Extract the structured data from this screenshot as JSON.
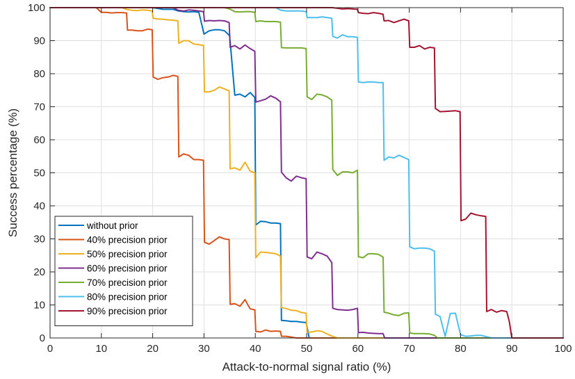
{
  "chart_data": {
    "type": "line",
    "xlabel": "Attack-to-normal signal ratio (%)",
    "ylabel": "Success percentage (%)",
    "xlim": [
      0,
      100
    ],
    "ylim": [
      0,
      100
    ],
    "xticks": [
      0,
      10,
      20,
      30,
      40,
      50,
      60,
      70,
      80,
      90,
      100
    ],
    "yticks": [
      0,
      10,
      20,
      30,
      40,
      50,
      60,
      70,
      80,
      90,
      100
    ],
    "grid": true,
    "legend_position": "bottom-left",
    "series": [
      {
        "name": "without prior",
        "color": "#0072BD",
        "x": [
          0,
          20,
          22,
          24,
          25,
          26,
          27,
          28,
          29,
          30,
          31,
          32,
          33,
          34,
          35,
          36,
          37,
          38,
          39,
          39.9,
          40.1,
          41,
          42,
          43,
          44,
          44.9,
          45.1,
          46,
          47,
          48,
          49,
          49.9,
          50.5,
          100
        ],
        "y": [
          100,
          100,
          99.5,
          99.5,
          99,
          98.8,
          98.7,
          98.8,
          98.6,
          92,
          93,
          93.3,
          93.3,
          93,
          91.5,
          73.5,
          73.8,
          73,
          74.3,
          72.8,
          34.2,
          35.3,
          35.2,
          34.8,
          34.8,
          34.6,
          5.3,
          5.2,
          5,
          5,
          4.8,
          4.7,
          0,
          0
        ]
      },
      {
        "name": "40% precision prior",
        "color": "#D95319",
        "x": [
          0,
          9,
          10,
          11,
          12,
          13,
          14,
          14.9,
          15.1,
          16,
          17,
          18,
          19,
          19.9,
          20.1,
          21,
          22,
          23,
          24,
          24.9,
          25.1,
          26,
          27,
          28,
          29,
          29.9,
          30.1,
          31,
          32,
          33,
          34,
          34.9,
          35.1,
          36,
          37,
          38,
          39,
          39.9,
          40.1,
          41,
          42,
          43,
          44,
          44.9,
          45.1,
          46,
          47,
          48,
          100
        ],
        "y": [
          100,
          100,
          98.6,
          98.6,
          98.4,
          98.5,
          98.5,
          98.4,
          93.2,
          93.2,
          93,
          93,
          93.5,
          93.3,
          79,
          78.3,
          78.8,
          79,
          79.5,
          79.2,
          54.8,
          55.7,
          55.3,
          54,
          54,
          53.8,
          29,
          28.4,
          29.5,
          30.6,
          30,
          29.8,
          10.2,
          10.4,
          9.6,
          11.6,
          8.8,
          8.5,
          2,
          1.8,
          2.4,
          2,
          2.1,
          2,
          0.5,
          0.5,
          0.3,
          0,
          0
        ]
      },
      {
        "name": "50% precision prior",
        "color": "#EDB120",
        "x": [
          0,
          14,
          15,
          16,
          17,
          18,
          19,
          19.9,
          20.1,
          21,
          22,
          23,
          24,
          24.9,
          25.1,
          26,
          27,
          28,
          29,
          29.9,
          30.1,
          31,
          32,
          33,
          34,
          34.9,
          35.1,
          36,
          37,
          38,
          39,
          39.9,
          40.1,
          41,
          42,
          43,
          44,
          44.9,
          45.1,
          46,
          47,
          48,
          49,
          49.9,
          50.1,
          51,
          52,
          53,
          54,
          55,
          56,
          100
        ],
        "y": [
          100,
          100,
          99.4,
          99.2,
          99.1,
          99.3,
          99.2,
          99,
          96.8,
          96.6,
          96.5,
          96.3,
          96.2,
          96,
          89.2,
          90,
          90,
          89,
          88.8,
          88.6,
          74.5,
          74.5,
          75,
          76,
          75.4,
          74.8,
          51.2,
          51.5,
          50.8,
          53.2,
          50.5,
          50,
          24.3,
          26,
          25.9,
          25.7,
          25.5,
          24.8,
          9.2,
          8.9,
          8.4,
          8.3,
          7.7,
          7.5,
          1.7,
          1.8,
          2.2,
          2,
          1.2,
          0.5,
          0,
          0
        ]
      },
      {
        "name": "60% precision prior",
        "color": "#7E2F8E",
        "x": [
          0,
          24,
          25,
          26,
          27,
          28,
          29,
          29.9,
          30.1,
          31,
          32,
          33,
          34,
          34.9,
          35.1,
          36,
          37,
          38,
          39,
          39.9,
          40.1,
          41,
          42,
          43,
          44,
          44.9,
          45.1,
          46,
          47,
          48,
          49,
          49.9,
          50.1,
          51,
          52,
          53,
          54,
          54.9,
          55.1,
          56,
          57,
          58,
          59,
          59.9,
          60.1,
          61,
          62,
          63,
          64,
          64.9,
          65.2,
          66,
          100
        ],
        "y": [
          100,
          100,
          99.2,
          99,
          99.3,
          99.2,
          99,
          98.8,
          95.9,
          96.1,
          96,
          96.1,
          96,
          95.5,
          88,
          88.5,
          87.5,
          88.7,
          87.6,
          86.8,
          71.4,
          71.8,
          72.3,
          73.3,
          72.6,
          71.5,
          50.2,
          48.5,
          47.5,
          49,
          48.5,
          48.2,
          24.5,
          24,
          26,
          25.5,
          24.8,
          22.8,
          9,
          8.6,
          8.5,
          8.4,
          8.6,
          9,
          1.6,
          1.7,
          1.5,
          1.4,
          1.3,
          1.3,
          0,
          0,
          0
        ]
      },
      {
        "name": "70% precision prior",
        "color": "#77AC30",
        "x": [
          0,
          34,
          35,
          36,
          37,
          38,
          39,
          39.9,
          40.1,
          41,
          42,
          43,
          44,
          44.9,
          45.1,
          46,
          47,
          48,
          49,
          49.9,
          50.1,
          51,
          52,
          53,
          54,
          54.9,
          55.1,
          56,
          57,
          58,
          59,
          59.9,
          60.1,
          61,
          62,
          63,
          64,
          64.9,
          65.1,
          66,
          67,
          68,
          69,
          69.9,
          70.1,
          71,
          72,
          73,
          74,
          74.9,
          75.5,
          100
        ],
        "y": [
          100,
          100,
          99.6,
          98.8,
          98.7,
          98.8,
          98.8,
          98.6,
          95.8,
          96,
          95.8,
          95.8,
          95.8,
          95.6,
          87.9,
          87.8,
          87.8,
          87.8,
          87.8,
          87.6,
          73,
          72.2,
          73.8,
          73.6,
          73,
          72,
          51,
          49.2,
          50.3,
          50.3,
          50,
          50.8,
          24.6,
          24.3,
          25.5,
          25.5,
          25.3,
          24.5,
          7.8,
          7.5,
          7,
          6.8,
          7.5,
          7.6,
          1.5,
          1.3,
          1.3,
          1.3,
          1.2,
          0.8,
          0,
          0
        ]
      },
      {
        "name": "80% precision prior",
        "color": "#4DBEEE",
        "x": [
          0,
          44,
          45,
          46,
          47,
          48,
          49,
          49.9,
          50.1,
          51,
          52,
          53,
          54,
          54.9,
          55.1,
          56,
          57,
          58,
          59,
          59.9,
          60.1,
          61,
          62,
          63,
          64,
          64.9,
          65.1,
          66,
          67,
          68,
          69,
          69.9,
          70.1,
          71,
          72,
          73,
          74,
          74.9,
          75.1,
          76,
          77,
          78,
          79,
          80,
          81,
          82,
          83,
          84,
          85,
          86,
          100
        ],
        "y": [
          100,
          100,
          99.2,
          99,
          99,
          99,
          99,
          98.8,
          97,
          97,
          97,
          97.2,
          97,
          96.8,
          91.3,
          90.8,
          91.8,
          91.2,
          91.2,
          91,
          77.5,
          77.3,
          77.5,
          77.5,
          77.3,
          77.3,
          53.8,
          54.8,
          54.5,
          55.3,
          54.6,
          54,
          27.6,
          27,
          27.2,
          27.2,
          27,
          26.3,
          7.2,
          6.5,
          0.5,
          7.4,
          7.5,
          1,
          0.5,
          0.6,
          0.8,
          0.8,
          0.4,
          0,
          0
        ]
      },
      {
        "name": "90% precision prior",
        "color": "#A2142F",
        "x": [
          0,
          55,
          56,
          57,
          58,
          59,
          59.9,
          60.1,
          61,
          62,
          63,
          64,
          64.9,
          65.1,
          66,
          67,
          68,
          69,
          69.9,
          70.1,
          71,
          72,
          73,
          74,
          74.9,
          75.1,
          76,
          77,
          78,
          79,
          79.9,
          80.1,
          81,
          82,
          83,
          84,
          84.9,
          85.1,
          86,
          87,
          88,
          89,
          89.5,
          90,
          100
        ],
        "y": [
          100,
          100,
          99.8,
          99.6,
          99.7,
          99.6,
          99.5,
          98.5,
          98.3,
          98.2,
          98.5,
          98.3,
          98,
          96,
          96.1,
          95.5,
          96,
          96.5,
          96,
          88,
          88,
          88.5,
          87.5,
          88,
          87.8,
          69.5,
          68.5,
          68.6,
          68.7,
          68.8,
          68.5,
          35.5,
          36,
          37.8,
          37.3,
          37,
          36.8,
          8,
          8.6,
          7.8,
          8.3,
          8,
          5,
          0,
          0
        ]
      }
    ]
  }
}
